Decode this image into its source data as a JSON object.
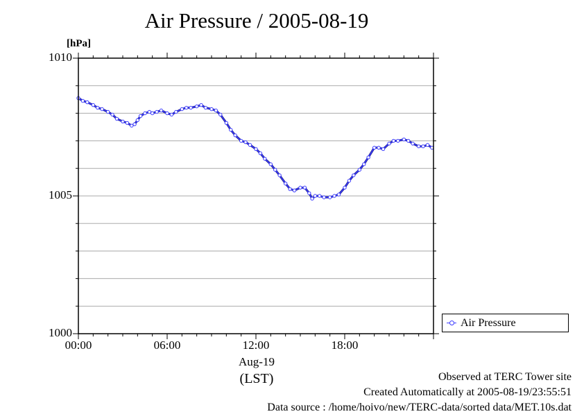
{
  "chart_data": {
    "type": "line",
    "title": "Air Pressure / 2005-08-19",
    "ylabel": "[hPa]",
    "xlabel": "(LST)",
    "x_date_label": "Aug-19",
    "ylim": [
      1000,
      1010
    ],
    "xlim": [
      0,
      24
    ],
    "y_ticks": [
      {
        "value": 1010,
        "label": "1010"
      },
      {
        "value": 1005,
        "label": "1005"
      },
      {
        "value": 1000,
        "label": "1000"
      }
    ],
    "y_gridlines": [
      1001,
      1002,
      1003,
      1004,
      1005,
      1006,
      1007,
      1008,
      1009
    ],
    "x_ticks": [
      {
        "value": 0,
        "label": "00:00"
      },
      {
        "value": 6,
        "label": "06:00"
      },
      {
        "value": 12,
        "label": "12:00"
      },
      {
        "value": 18,
        "label": "18:00"
      }
    ],
    "grid": true,
    "legend": {
      "position": "bottom-right, outside plot"
    },
    "series": [
      {
        "name": "Air Pressure",
        "color": "#3b3bff",
        "x": [
          0.0,
          0.3,
          0.6,
          1.0,
          1.3,
          1.6,
          2.0,
          2.3,
          2.6,
          3.0,
          3.3,
          3.6,
          3.8,
          4.0,
          4.2,
          4.5,
          4.8,
          5.0,
          5.3,
          5.6,
          6.0,
          6.3,
          6.6,
          7.0,
          7.3,
          7.6,
          8.0,
          8.3,
          8.6,
          9.0,
          9.3,
          9.6,
          10.0,
          10.3,
          10.6,
          11.0,
          11.3,
          11.6,
          12.0,
          12.3,
          12.6,
          13.0,
          13.3,
          13.6,
          14.0,
          14.3,
          14.6,
          15.0,
          15.3,
          15.6,
          15.8,
          16.0,
          16.3,
          16.6,
          17.0,
          17.3,
          17.6,
          18.0,
          18.3,
          18.6,
          19.0,
          19.3,
          19.6,
          20.0,
          20.3,
          20.6,
          21.0,
          21.3,
          21.6,
          22.0,
          22.3,
          22.6,
          23.0,
          23.3,
          23.6,
          23.9
        ],
        "y": [
          1008.55,
          1008.45,
          1008.4,
          1008.3,
          1008.2,
          1008.15,
          1008.05,
          1007.95,
          1007.8,
          1007.7,
          1007.65,
          1007.55,
          1007.6,
          1007.75,
          1007.9,
          1008.0,
          1008.05,
          1008.0,
          1008.05,
          1008.1,
          1008.0,
          1007.95,
          1008.05,
          1008.15,
          1008.2,
          1008.2,
          1008.25,
          1008.3,
          1008.2,
          1008.15,
          1008.1,
          1007.95,
          1007.65,
          1007.4,
          1007.2,
          1007.0,
          1006.95,
          1006.85,
          1006.7,
          1006.55,
          1006.35,
          1006.15,
          1005.95,
          1005.75,
          1005.45,
          1005.25,
          1005.2,
          1005.3,
          1005.3,
          1005.1,
          1004.9,
          1005.0,
          1005.0,
          1004.95,
          1004.95,
          1005.0,
          1005.05,
          1005.3,
          1005.55,
          1005.75,
          1005.95,
          1006.15,
          1006.4,
          1006.75,
          1006.75,
          1006.7,
          1006.9,
          1007.0,
          1007.0,
          1007.05,
          1007.0,
          1006.9,
          1006.8,
          1006.8,
          1006.85,
          1006.75
        ]
      }
    ]
  },
  "footer": {
    "line1": "Observed at TERC Tower site",
    "line2": "Created Automatically at 2005-08-19/23:55:51",
    "line3": "Data source : /home/hoivo/new/TERC-data/sorted  data/MET.10s.dat"
  }
}
